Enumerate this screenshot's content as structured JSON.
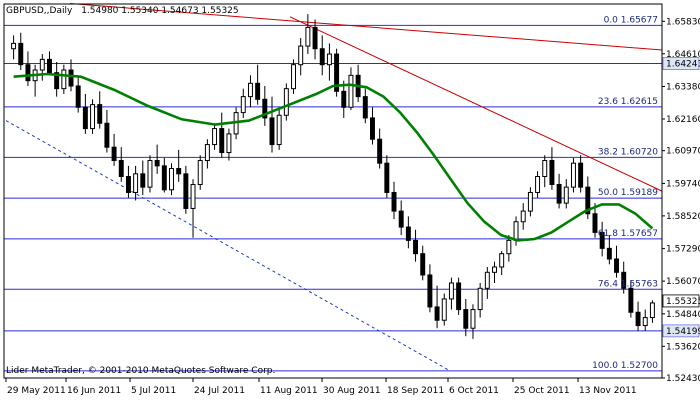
{
  "header": {
    "symbol": "GBPUSD,,Daily",
    "ohlc": "1.54980 1.55340 1.54673 1.55325"
  },
  "footer": "Lider MetaTrader, © 2001-2010 MetaQuotes Software Corp.",
  "colors": {
    "background": "#ffffff",
    "grid": "#2b2bd6",
    "candle": "#000000",
    "moving_average": "#008000",
    "resistance_line": "#cc0000",
    "support_line": "#1c3cc8",
    "fib_label": "#1a2a80",
    "tag_fill": "#dce6f4",
    "current_tag_fill": "#ffffff"
  },
  "chart_data": {
    "type": "candlestick",
    "title": "GBPUSD,,Daily",
    "ylim": [
      1.5243,
      1.6648
    ],
    "y_ticks": [
      "1.65830",
      "1.64610",
      "1.63380",
      "1.62160",
      "1.60970",
      "1.59740",
      "1.58520",
      "1.57290",
      "1.56070",
      "1.54840",
      "1.53620",
      "1.52430"
    ],
    "x_ticks": [
      "29 May 2011",
      "16 Jun 2011",
      "5 Jul 2011",
      "24 Jul 2011",
      "11 Aug 2011",
      "30 Aug 2011",
      "18 Sep 2011",
      "6 Oct 2011",
      "25 Oct 2011",
      "13 Nov 2011"
    ],
    "fib_levels": [
      {
        "label": "0.0 1.65677",
        "value": 1.65677
      },
      {
        "label": "23.6 1.62615",
        "value": 1.62615
      },
      {
        "label": "38.2 1.60720",
        "value": 1.6072
      },
      {
        "label": "50.0 1.59189",
        "value": 1.59189
      },
      {
        "label": "61.8 1.57657",
        "value": 1.57657
      },
      {
        "label": "76.4 1.55763",
        "value": 1.55763
      },
      {
        "label": "100.0 1.52700",
        "value": 1.527
      }
    ],
    "horizontal_lines": [
      {
        "label": "1.64243",
        "value": 1.64243
      },
      {
        "label": "1.54199",
        "value": 1.54199
      }
    ],
    "current_price": {
      "label": "1.55325",
      "value": 1.55325
    },
    "moving_average": [
      [
        0,
        1.6375
      ],
      [
        10,
        1.6385
      ],
      [
        20,
        1.6375
      ],
      [
        30,
        1.6325
      ],
      [
        40,
        1.6265
      ],
      [
        50,
        1.6215
      ],
      [
        60,
        1.6195
      ],
      [
        70,
        1.621
      ],
      [
        80,
        1.626
      ],
      [
        90,
        1.631
      ],
      [
        95,
        1.634
      ],
      [
        100,
        1.6345
      ],
      [
        105,
        1.6335
      ],
      [
        110,
        1.63
      ],
      [
        115,
        1.624
      ],
      [
        120,
        1.6165
      ],
      [
        125,
        1.608
      ],
      [
        130,
        1.599
      ],
      [
        135,
        1.59
      ],
      [
        140,
        1.583
      ],
      [
        145,
        1.578
      ],
      [
        150,
        1.576
      ],
      [
        155,
        1.5765
      ],
      [
        160,
        1.579
      ],
      [
        165,
        1.583
      ],
      [
        170,
        1.587
      ],
      [
        175,
        1.5895
      ],
      [
        180,
        1.5895
      ],
      [
        185,
        1.586
      ],
      [
        190,
        1.5805
      ]
    ],
    "candles": [
      [
        0,
        1.648,
        1.653,
        1.644,
        1.65
      ],
      [
        1,
        1.65,
        1.654,
        1.64,
        1.642
      ],
      [
        2,
        1.642,
        1.647,
        1.634,
        1.636
      ],
      [
        3,
        1.636,
        1.642,
        1.63,
        1.64
      ],
      [
        4,
        1.64,
        1.646,
        1.636,
        1.644
      ],
      [
        5,
        1.644,
        1.647,
        1.638,
        1.639
      ],
      [
        6,
        1.639,
        1.643,
        1.63,
        1.633
      ],
      [
        7,
        1.633,
        1.642,
        1.631,
        1.64
      ],
      [
        8,
        1.64,
        1.644,
        1.632,
        1.634
      ],
      [
        9,
        1.634,
        1.638,
        1.624,
        1.626
      ],
      [
        10,
        1.626,
        1.631,
        1.616,
        1.618
      ],
      [
        11,
        1.618,
        1.629,
        1.616,
        1.627
      ],
      [
        12,
        1.627,
        1.632,
        1.618,
        1.62
      ],
      [
        13,
        1.62,
        1.625,
        1.609,
        1.611
      ],
      [
        14,
        1.611,
        1.616,
        1.604,
        1.606
      ],
      [
        15,
        1.606,
        1.611,
        1.598,
        1.6
      ],
      [
        16,
        1.6,
        1.604,
        1.592,
        1.594
      ],
      [
        17,
        1.594,
        1.604,
        1.591,
        1.601
      ],
      [
        18,
        1.601,
        1.606,
        1.593,
        1.596
      ],
      [
        19,
        1.596,
        1.608,
        1.594,
        1.606
      ],
      [
        20,
        1.606,
        1.612,
        1.601,
        1.604
      ],
      [
        21,
        1.604,
        1.607,
        1.594,
        1.595
      ],
      [
        22,
        1.595,
        1.605,
        1.593,
        1.603
      ],
      [
        23,
        1.603,
        1.61,
        1.598,
        1.601
      ],
      [
        24,
        1.601,
        1.604,
        1.586,
        1.588
      ],
      [
        25,
        1.588,
        1.599,
        1.577,
        1.597
      ],
      [
        26,
        1.597,
        1.608,
        1.595,
        1.606
      ],
      [
        27,
        1.606,
        1.614,
        1.603,
        1.612
      ],
      [
        28,
        1.612,
        1.62,
        1.61,
        1.618
      ],
      [
        29,
        1.618,
        1.624,
        1.607,
        1.609
      ],
      [
        30,
        1.609,
        1.618,
        1.606,
        1.616
      ],
      [
        31,
        1.616,
        1.626,
        1.614,
        1.624
      ],
      [
        32,
        1.624,
        1.633,
        1.622,
        1.63
      ],
      [
        33,
        1.63,
        1.638,
        1.626,
        1.635
      ],
      [
        34,
        1.635,
        1.642,
        1.627,
        1.629
      ],
      [
        35,
        1.629,
        1.634,
        1.619,
        1.622
      ],
      [
        36,
        1.622,
        1.63,
        1.609,
        1.612
      ],
      [
        37,
        1.612,
        1.625,
        1.61,
        1.623
      ],
      [
        38,
        1.623,
        1.635,
        1.621,
        1.633
      ],
      [
        39,
        1.633,
        1.644,
        1.631,
        1.642
      ],
      [
        40,
        1.642,
        1.652,
        1.638,
        1.649
      ],
      [
        41,
        1.649,
        1.661,
        1.646,
        1.656
      ],
      [
        42,
        1.656,
        1.659,
        1.644,
        1.648
      ],
      [
        43,
        1.648,
        1.653,
        1.638,
        1.642
      ],
      [
        44,
        1.642,
        1.65,
        1.636,
        1.646
      ],
      [
        45,
        1.646,
        1.648,
        1.63,
        1.632
      ],
      [
        46,
        1.632,
        1.636,
        1.622,
        1.626
      ],
      [
        47,
        1.626,
        1.641,
        1.625,
        1.638
      ],
      [
        48,
        1.638,
        1.642,
        1.628,
        1.63
      ],
      [
        49,
        1.63,
        1.633,
        1.62,
        1.622
      ],
      [
        50,
        1.622,
        1.626,
        1.612,
        1.614
      ],
      [
        51,
        1.614,
        1.618,
        1.603,
        1.605
      ],
      [
        52,
        1.605,
        1.608,
        1.592,
        1.594
      ],
      [
        53,
        1.594,
        1.598,
        1.584,
        1.587
      ],
      [
        54,
        1.587,
        1.591,
        1.578,
        1.581
      ],
      [
        55,
        1.581,
        1.585,
        1.573,
        1.576
      ],
      [
        56,
        1.576,
        1.58,
        1.568,
        1.571
      ],
      [
        57,
        1.571,
        1.574,
        1.561,
        1.563
      ],
      [
        58,
        1.563,
        1.567,
        1.549,
        1.551
      ],
      [
        59,
        1.551,
        1.559,
        1.543,
        1.546
      ],
      [
        60,
        1.546,
        1.556,
        1.544,
        1.554
      ],
      [
        61,
        1.554,
        1.562,
        1.55,
        1.56
      ],
      [
        62,
        1.56,
        1.562,
        1.548,
        1.55
      ],
      [
        63,
        1.55,
        1.554,
        1.54,
        1.543
      ],
      [
        64,
        1.543,
        1.552,
        1.539,
        1.55
      ],
      [
        65,
        1.55,
        1.56,
        1.547,
        1.558
      ],
      [
        66,
        1.558,
        1.566,
        1.554,
        1.564
      ],
      [
        67,
        1.564,
        1.568,
        1.56,
        1.566
      ],
      [
        68,
        1.566,
        1.572,
        1.563,
        1.571
      ],
      [
        69,
        1.571,
        1.578,
        1.568,
        1.576
      ],
      [
        70,
        1.576,
        1.585,
        1.574,
        1.583
      ],
      [
        71,
        1.583,
        1.59,
        1.58,
        1.587
      ],
      [
        72,
        1.587,
        1.596,
        1.585,
        1.594
      ],
      [
        73,
        1.594,
        1.602,
        1.592,
        1.6
      ],
      [
        74,
        1.6,
        1.608,
        1.596,
        1.606
      ],
      [
        75,
        1.606,
        1.611,
        1.595,
        1.597
      ],
      [
        76,
        1.597,
        1.601,
        1.588,
        1.59
      ],
      [
        77,
        1.59,
        1.599,
        1.588,
        1.596
      ],
      [
        78,
        1.596,
        1.607,
        1.594,
        1.605
      ],
      [
        79,
        1.605,
        1.608,
        1.594,
        1.596
      ],
      [
        80,
        1.596,
        1.6,
        1.584,
        1.586
      ],
      [
        81,
        1.586,
        1.59,
        1.577,
        1.579
      ],
      [
        82,
        1.579,
        1.583,
        1.57,
        1.573
      ],
      [
        83,
        1.573,
        1.578,
        1.567,
        1.569
      ],
      [
        84,
        1.569,
        1.574,
        1.562,
        1.564
      ],
      [
        85,
        1.564,
        1.568,
        1.556,
        1.558
      ],
      [
        86,
        1.558,
        1.561,
        1.547,
        1.549
      ],
      [
        87,
        1.549,
        1.553,
        1.542,
        1.544
      ],
      [
        88,
        1.544,
        1.55,
        1.542,
        1.547
      ],
      [
        89,
        1.547,
        1.5535,
        1.545,
        1.5525
      ]
    ]
  }
}
